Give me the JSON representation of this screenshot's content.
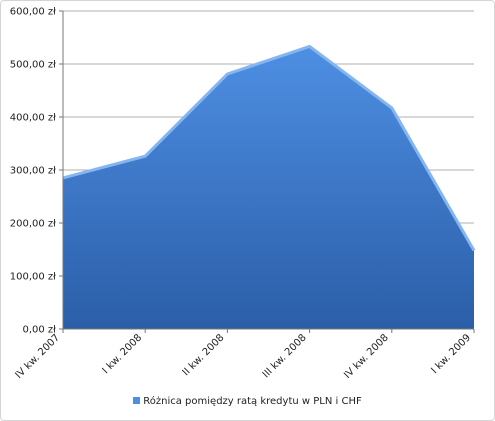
{
  "chart_data": {
    "type": "area",
    "categories": [
      "IV kw. 2007",
      "I kw. 2008",
      "II kw. 2008",
      "III kw. 2008",
      "IV kw. 2008",
      "I kw. 2009"
    ],
    "series": [
      {
        "name": "Różnica pomiędzy ratą kredytu w PLN i CHF",
        "values": [
          287,
          328,
          483,
          535,
          419,
          150
        ]
      }
    ],
    "y_ticks": [
      "0,00 zł",
      "100,00 zł",
      "200,00 zł",
      "300,00 zł",
      "400,00 zł",
      "500,00 zł",
      "600,00 zł"
    ],
    "ylim": [
      0,
      600
    ],
    "grid": true,
    "legend_position": "bottom",
    "colors": {
      "fill_top": "#4e8fe3",
      "fill_bottom": "#2b5ea8",
      "edge": "#86b6f0",
      "grid": "#b0b0b0"
    }
  }
}
